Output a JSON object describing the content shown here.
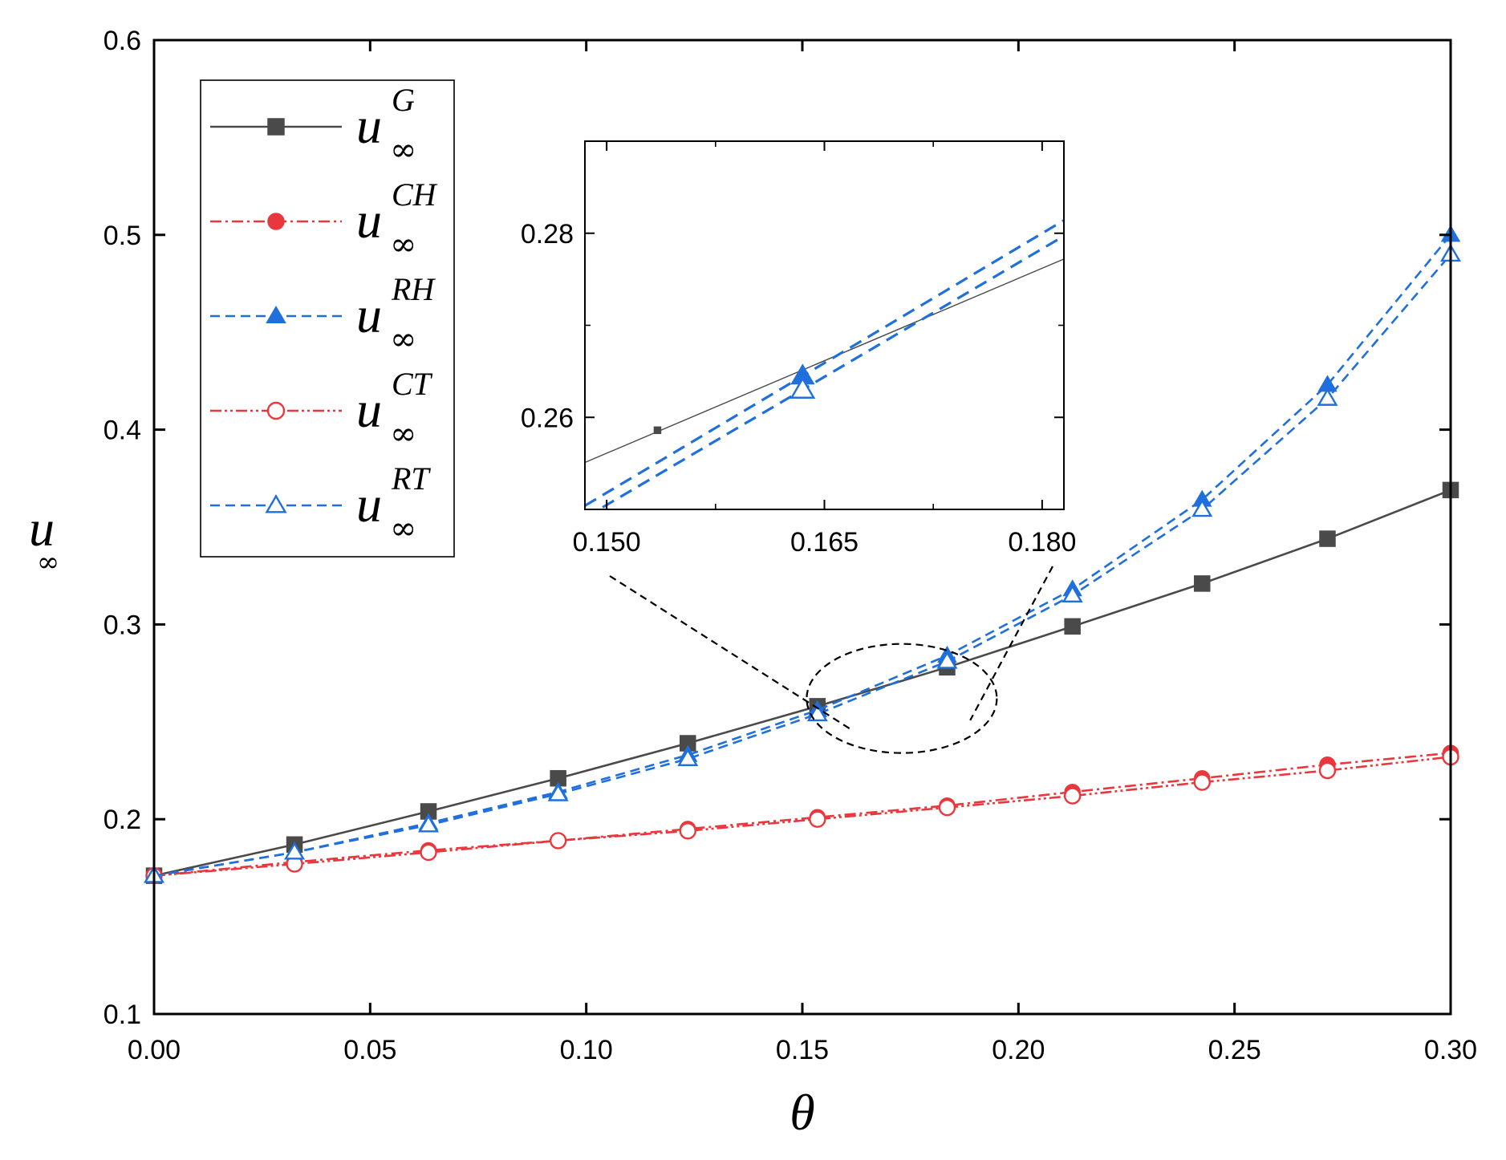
{
  "chart_data": {
    "type": "line",
    "title": "",
    "xlabel": "θ",
    "ylabel": "u",
    "ylabel_sub": "∞",
    "xlim": [
      0.0,
      0.3
    ],
    "ylim": [
      0.1,
      0.6
    ],
    "xticks": [
      "0.00",
      "0.05",
      "0.10",
      "0.15",
      "0.20",
      "0.25",
      "0.30"
    ],
    "yticks": [
      "0.1",
      "0.2",
      "0.3",
      "0.4",
      "0.5",
      "0.6"
    ],
    "grid": false,
    "legend_position": "top-left",
    "series": [
      {
        "name": "u∞^G",
        "base": "u",
        "sub": "∞",
        "sup": "G",
        "color": "#4a4a4a",
        "line_style": "solid",
        "marker": "filled-square",
        "x": [
          0.0,
          0.0325,
          0.0635,
          0.0935,
          0.1235,
          0.1535,
          0.1835,
          0.2125,
          0.2425,
          0.2715,
          0.3
        ],
        "y": [
          0.171,
          0.187,
          0.204,
          0.221,
          0.239,
          0.258,
          0.278,
          0.299,
          0.321,
          0.344,
          0.369
        ]
      },
      {
        "name": "u∞^CH",
        "base": "u",
        "sub": "∞",
        "sup": "CH",
        "color": "#e8383d",
        "line_style": "dash-dot",
        "marker": "filled-circle",
        "x": [
          0.0,
          0.0325,
          0.0635,
          0.0935,
          0.1235,
          0.1535,
          0.1835,
          0.2125,
          0.2425,
          0.2715,
          0.3
        ],
        "y": [
          0.171,
          0.178,
          0.184,
          0.189,
          0.195,
          0.201,
          0.207,
          0.214,
          0.221,
          0.228,
          0.234
        ]
      },
      {
        "name": "u∞^RH",
        "base": "u",
        "sub": "∞",
        "sup": "RH",
        "color": "#1f6fdc",
        "line_style": "dashed",
        "marker": "filled-triangle",
        "x": [
          0.0,
          0.0325,
          0.0635,
          0.0935,
          0.1235,
          0.1535,
          0.1835,
          0.2125,
          0.2425,
          0.2715,
          0.3
        ],
        "y": [
          0.171,
          0.183,
          0.198,
          0.214,
          0.233,
          0.256,
          0.284,
          0.318,
          0.364,
          0.423,
          0.5
        ]
      },
      {
        "name": "u∞^CT",
        "base": "u",
        "sub": "∞",
        "sup": "CT",
        "color": "#e8383d",
        "line_style": "dash-dot-dot",
        "marker": "open-circle",
        "x": [
          0.0,
          0.0325,
          0.0635,
          0.0935,
          0.1235,
          0.1535,
          0.1835,
          0.2125,
          0.2425,
          0.2715,
          0.3
        ],
        "y": [
          0.171,
          0.177,
          0.183,
          0.189,
          0.194,
          0.2,
          0.206,
          0.212,
          0.219,
          0.225,
          0.232
        ]
      },
      {
        "name": "u∞^RT",
        "base": "u",
        "sub": "∞",
        "sup": "RT",
        "color": "#1f6fdc",
        "line_style": "dashed",
        "marker": "open-triangle",
        "x": [
          0.0,
          0.0325,
          0.0635,
          0.0935,
          0.1235,
          0.1535,
          0.1835,
          0.2125,
          0.2425,
          0.2715,
          0.3
        ],
        "y": [
          0.171,
          0.183,
          0.197,
          0.213,
          0.231,
          0.254,
          0.281,
          0.315,
          0.359,
          0.416,
          0.49
        ]
      }
    ],
    "inset": {
      "xlim": [
        0.1485,
        0.1815
      ],
      "ylim": [
        0.25,
        0.29
      ],
      "xticks": [
        "0.150",
        "0.165",
        "0.180"
      ],
      "yticks": [
        "0.26",
        "0.28"
      ],
      "zoom_region": {
        "x_center": 0.173,
        "y_center": 0.262,
        "x_radius": 0.022,
        "y_radius": 0.028
      },
      "lines": [
        {
          "series": "u∞^G",
          "color": "#4a4a4a",
          "style": "solid",
          "x": [
            0.1485,
            0.1815
          ],
          "y": [
            0.2551,
            0.2772
          ]
        },
        {
          "series": "u∞^RH",
          "color": "#1f6fdc",
          "style": "dashed",
          "x": [
            0.1485,
            0.1815
          ],
          "y": [
            0.2504,
            0.2814
          ]
        },
        {
          "series": "u∞^RT",
          "color": "#1f6fdc",
          "style": "dashed",
          "x": [
            0.1485,
            0.1815
          ],
          "y": [
            0.2491,
            0.2797
          ]
        }
      ],
      "markers": [
        {
          "series": "u∞^G",
          "marker": "filled-square",
          "color": "#4a4a4a",
          "x": 0.1535,
          "y": 0.2586
        },
        {
          "series": "u∞^RH",
          "marker": "filled-triangle",
          "color": "#1f6fdc",
          "x": 0.1635,
          "y": 0.2645
        },
        {
          "series": "u∞^RT",
          "marker": "open-triangle",
          "color": "#1f6fdc",
          "x": 0.1635,
          "y": 0.263
        }
      ]
    }
  }
}
